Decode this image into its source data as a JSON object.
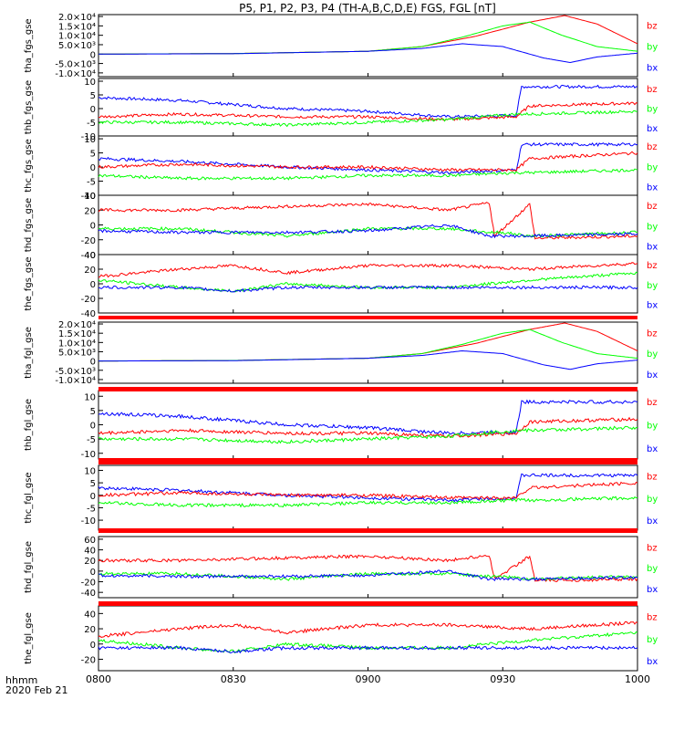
{
  "title": "P5, P1, P2, P3, P4 (TH-A,B,C,D,E) FGS, FGL [nT]",
  "footer": {
    "time_label": "hhmm",
    "date_label": "2020 Feb 21"
  },
  "colors": {
    "bz": "#ff0000",
    "by": "#00ff00",
    "bx": "#0000ff",
    "flag": "#ff0000"
  },
  "chart_data": {
    "type": "line",
    "x_tick_labels": [
      "0800",
      "0830",
      "0900",
      "0930",
      "1000"
    ],
    "x_range_hours": [
      8.0,
      10.0
    ],
    "panels": [
      {
        "ylabel": "tha_fgs_gse",
        "ylim": [
          -12000,
          21000
        ],
        "ytick_labels": [
          "2.0×10⁴",
          "1.5×10⁴",
          "1.0×10⁴",
          "5.0×10³",
          "0",
          "-5.0×10³",
          "-1.0×10⁴"
        ],
        "ytick_values": [
          20000,
          15000,
          10000,
          5000,
          0,
          -5000,
          -10000
        ],
        "legend": [
          "bz",
          "by",
          "bx"
        ],
        "series": [
          {
            "name": "bz",
            "x": [
              8.0,
              8.5,
              9.0,
              9.2,
              9.4,
              9.6,
              9.73,
              9.85,
              10.0
            ],
            "y": [
              0,
              300,
              1500,
              4000,
              9500,
              17000,
              20500,
              16000,
              5500
            ]
          },
          {
            "name": "by",
            "x": [
              8.0,
              8.5,
              9.0,
              9.2,
              9.35,
              9.5,
              9.6,
              9.72,
              9.85,
              10.0
            ],
            "y": [
              0,
              300,
              1500,
              4000,
              9000,
              15000,
              17000,
              10000,
              4000,
              1500
            ]
          },
          {
            "name": "bx",
            "x": [
              8.0,
              8.5,
              9.0,
              9.2,
              9.35,
              9.5,
              9.65,
              9.75,
              9.85,
              10.0
            ],
            "y": [
              0,
              200,
              1500,
              3000,
              5500,
              4000,
              -2000,
              -4500,
              -1500,
              500
            ]
          }
        ]
      },
      {
        "ylabel": "thb_fgs_gse",
        "ylim": [
          -10,
          11
        ],
        "ytick_labels": [
          "10",
          "5",
          "0",
          "-5",
          "-10"
        ],
        "ytick_values": [
          10,
          5,
          0,
          -5,
          -10
        ],
        "legend": [
          "bz",
          "by",
          "bx"
        ],
        "series": [
          {
            "name": "bx",
            "x": [
              8.0,
              8.3,
              8.7,
              9.0,
              9.3,
              9.55,
              9.57,
              10.0
            ],
            "y": [
              4,
              3,
              0,
              -1,
              -3,
              -2.5,
              8,
              8
            ]
          },
          {
            "name": "bz",
            "x": [
              8.0,
              8.3,
              8.7,
              9.0,
              9.3,
              9.55,
              9.6,
              10.0
            ],
            "y": [
              -3,
              -2,
              -3,
              -3,
              -4,
              -3,
              1,
              2
            ]
          },
          {
            "name": "by",
            "x": [
              8.0,
              8.3,
              8.7,
              9.0,
              9.3,
              9.55,
              9.6,
              10.0
            ],
            "y": [
              -5,
              -5,
              -6,
              -5,
              -4,
              -2,
              -2,
              -1
            ]
          }
        ]
      },
      {
        "ylabel": "thc_fgs_gse",
        "ylim": [
          -10,
          11
        ],
        "ytick_labels": [
          "10",
          "5",
          "0",
          "-5",
          "-10"
        ],
        "ytick_values": [
          10,
          5,
          0,
          -5,
          -10
        ],
        "legend": [
          "bz",
          "by",
          "bx"
        ],
        "series": [
          {
            "name": "bx",
            "x": [
              8.0,
              8.3,
              8.7,
              9.0,
              9.3,
              9.55,
              9.57,
              10.0
            ],
            "y": [
              3,
              2,
              0,
              -1,
              -2,
              -1,
              8,
              8
            ]
          },
          {
            "name": "bz",
            "x": [
              8.0,
              8.3,
              8.7,
              9.0,
              9.3,
              9.55,
              9.6,
              10.0
            ],
            "y": [
              0,
              1,
              0,
              0,
              -1,
              -1,
              3,
              5
            ]
          },
          {
            "name": "by",
            "x": [
              8.0,
              8.3,
              8.7,
              9.0,
              9.3,
              9.55,
              9.6,
              10.0
            ],
            "y": [
              -3,
              -4,
              -4,
              -3,
              -3,
              -2,
              -2,
              -1
            ]
          }
        ]
      },
      {
        "ylabel": "thd_fgs_gse",
        "ylim": [
          -40,
          40
        ],
        "ytick_labels": [
          "40",
          "20",
          "0",
          "-20",
          "-40"
        ],
        "ytick_values": [
          40,
          20,
          0,
          -20,
          -40
        ],
        "legend": [
          "bz",
          "by",
          "bx"
        ],
        "series": [
          {
            "name": "bz",
            "x": [
              8.0,
              8.3,
              8.7,
              9.0,
              9.3,
              9.45,
              9.47,
              9.6,
              9.62,
              10.0
            ],
            "y": [
              20,
              20,
              25,
              28,
              20,
              30,
              -15,
              28,
              -18,
              -15
            ]
          },
          {
            "name": "by",
            "x": [
              8.0,
              8.3,
              8.7,
              9.0,
              9.3,
              9.45,
              9.5,
              9.6,
              10.0
            ],
            "y": [
              -5,
              -5,
              -15,
              -5,
              -5,
              -10,
              -10,
              -15,
              -10
            ]
          },
          {
            "name": "bx",
            "x": [
              8.0,
              8.3,
              8.7,
              9.0,
              9.3,
              9.45,
              9.5,
              9.6,
              10.0
            ],
            "y": [
              -8,
              -10,
              -10,
              -8,
              0,
              -15,
              -15,
              -15,
              -12
            ]
          }
        ]
      },
      {
        "ylabel": "the_fgs_gse",
        "ylim": [
          -40,
          40
        ],
        "ytick_labels": [
          "40",
          "20",
          "0",
          "-20",
          "-40"
        ],
        "ytick_values": [
          40,
          20,
          0,
          -20,
          -40
        ],
        "legend": [
          "bz",
          "by",
          "bx"
        ],
        "series": [
          {
            "name": "bz",
            "x": [
              8.0,
              8.3,
              8.5,
              8.7,
              9.0,
              9.3,
              9.6,
              10.0
            ],
            "y": [
              10,
              20,
              25,
              15,
              25,
              25,
              20,
              28
            ]
          },
          {
            "name": "by",
            "x": [
              8.0,
              8.3,
              8.5,
              8.7,
              9.0,
              9.3,
              9.6,
              10.0
            ],
            "y": [
              5,
              -5,
              -10,
              0,
              -5,
              -5,
              5,
              15
            ]
          },
          {
            "name": "bx",
            "x": [
              8.0,
              8.3,
              8.5,
              8.7,
              9.0,
              9.3,
              9.6,
              10.0
            ],
            "y": [
              -5,
              -5,
              -10,
              -5,
              -5,
              -5,
              -5,
              -5
            ]
          }
        ]
      },
      {
        "ylabel": "tha_fgl_gse",
        "ylim": [
          -12000,
          21000
        ],
        "ytick_labels": [
          "2.0×10⁴",
          "1.5×10⁴",
          "1.0×10⁴",
          "5.0×10³",
          "0",
          "-5.0×10³",
          "-1.0×10⁴"
        ],
        "ytick_values": [
          20000,
          15000,
          10000,
          5000,
          0,
          -5000,
          -10000
        ],
        "legend": [
          "bz",
          "by",
          "bx"
        ],
        "series": [
          {
            "name": "bz",
            "x": [
              8.0,
              8.5,
              9.0,
              9.2,
              9.4,
              9.6,
              9.73,
              9.85,
              10.0
            ],
            "y": [
              0,
              300,
              1500,
              4000,
              9500,
              17000,
              20500,
              16000,
              5500
            ]
          },
          {
            "name": "by",
            "x": [
              8.0,
              8.5,
              9.0,
              9.2,
              9.35,
              9.5,
              9.6,
              9.72,
              9.85,
              10.0
            ],
            "y": [
              0,
              300,
              1500,
              4000,
              9000,
              15000,
              17000,
              10000,
              4000,
              1500
            ]
          },
          {
            "name": "bx",
            "x": [
              8.0,
              8.5,
              9.0,
              9.2,
              9.35,
              9.5,
              9.65,
              9.75,
              9.85,
              10.0
            ],
            "y": [
              0,
              200,
              1500,
              3000,
              5500,
              4000,
              -2000,
              -4500,
              -1500,
              500
            ]
          }
        ]
      },
      {
        "ylabel": "thb_fgl_gse",
        "ylim": [
          -12,
          12
        ],
        "ytick_labels": [
          "10",
          "5",
          "0",
          "-5",
          "-10"
        ],
        "ytick_values": [
          10,
          5,
          0,
          -5,
          -10
        ],
        "legend": [
          "bz",
          "by",
          "bx"
        ],
        "series": [
          {
            "name": "bx",
            "x": [
              8.0,
              8.3,
              8.7,
              9.0,
              9.3,
              9.55,
              9.57,
              10.0
            ],
            "y": [
              4,
              3,
              0,
              -1,
              -3,
              -2.5,
              8,
              8
            ]
          },
          {
            "name": "bz",
            "x": [
              8.0,
              8.3,
              8.7,
              9.0,
              9.3,
              9.55,
              9.6,
              10.0
            ],
            "y": [
              -3,
              -2,
              -3,
              -3,
              -4,
              -3,
              1,
              2
            ]
          },
          {
            "name": "by",
            "x": [
              8.0,
              8.3,
              8.7,
              9.0,
              9.3,
              9.55,
              9.6,
              10.0
            ],
            "y": [
              -5,
              -5,
              -6,
              -5,
              -4,
              -2,
              -2,
              -1
            ]
          }
        ]
      },
      {
        "ylabel": "thc_fgl_gse",
        "ylim": [
          -14,
          12
        ],
        "ytick_labels": [
          "10",
          "5",
          "0",
          "-5",
          "-10"
        ],
        "ytick_values": [
          10,
          5,
          0,
          -5,
          -10
        ],
        "legend": [
          "bz",
          "by",
          "bx"
        ],
        "series": [
          {
            "name": "bx",
            "x": [
              8.0,
              8.3,
              8.7,
              9.0,
              9.3,
              9.55,
              9.57,
              10.0
            ],
            "y": [
              3,
              2,
              0,
              -1,
              -2,
              -1,
              8,
              8
            ]
          },
          {
            "name": "bz",
            "x": [
              8.0,
              8.3,
              8.7,
              9.0,
              9.3,
              9.55,
              9.6,
              10.0
            ],
            "y": [
              0,
              1,
              0,
              0,
              -1,
              -1,
              3,
              5
            ]
          },
          {
            "name": "by",
            "x": [
              8.0,
              8.3,
              8.7,
              9.0,
              9.3,
              9.55,
              9.6,
              10.0
            ],
            "y": [
              -3,
              -4,
              -4,
              -3,
              -3,
              -2,
              -2,
              -1
            ]
          }
        ]
      },
      {
        "ylabel": "thd_fgl_gse",
        "ylim": [
          -50,
          65
        ],
        "ytick_labels": [
          "60",
          "40",
          "20",
          "0",
          "-20",
          "-40"
        ],
        "ytick_values": [
          60,
          40,
          20,
          0,
          -20,
          -40
        ],
        "legend": [
          "bz",
          "by",
          "bx"
        ],
        "series": [
          {
            "name": "bz",
            "x": [
              8.0,
              8.3,
              8.7,
              9.0,
              9.3,
              9.45,
              9.47,
              9.6,
              9.62,
              10.0
            ],
            "y": [
              20,
              20,
              25,
              28,
              20,
              30,
              -15,
              28,
              -18,
              -15
            ]
          },
          {
            "name": "by",
            "x": [
              8.0,
              8.3,
              8.7,
              9.0,
              9.3,
              9.45,
              9.5,
              9.6,
              10.0
            ],
            "y": [
              -5,
              -5,
              -15,
              -5,
              -5,
              -10,
              -10,
              -15,
              -10
            ]
          },
          {
            "name": "bx",
            "x": [
              8.0,
              8.3,
              8.7,
              9.0,
              9.3,
              9.45,
              9.5,
              9.6,
              10.0
            ],
            "y": [
              -8,
              -10,
              -10,
              -8,
              0,
              -15,
              -15,
              -15,
              -12
            ]
          }
        ]
      },
      {
        "ylabel": "the_fgl_gse",
        "ylim": [
          -35,
          50
        ],
        "ytick_labels": [
          "40",
          "20",
          "0",
          "-20"
        ],
        "ytick_values": [
          40,
          20,
          0,
          -20
        ],
        "legend": [
          "bz",
          "by",
          "bx"
        ],
        "series": [
          {
            "name": "bz",
            "x": [
              8.0,
              8.3,
              8.5,
              8.7,
              9.0,
              9.3,
              9.6,
              10.0
            ],
            "y": [
              10,
              20,
              25,
              15,
              25,
              25,
              20,
              28
            ]
          },
          {
            "name": "by",
            "x": [
              8.0,
              8.3,
              8.5,
              8.7,
              9.0,
              9.3,
              9.6,
              10.0
            ],
            "y": [
              5,
              -5,
              -10,
              0,
              -5,
              -5,
              5,
              15
            ]
          },
          {
            "name": "bx",
            "x": [
              8.0,
              8.3,
              8.5,
              8.7,
              9.0,
              9.3,
              9.6,
              10.0
            ],
            "y": [
              -5,
              -5,
              -10,
              -5,
              -5,
              -5,
              -5,
              -5
            ]
          }
        ]
      }
    ]
  }
}
